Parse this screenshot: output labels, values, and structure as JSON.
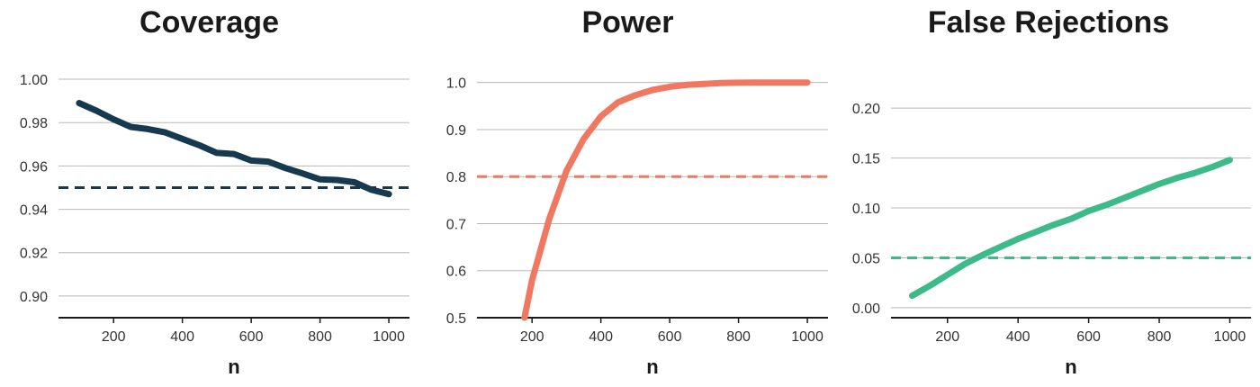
{
  "chart_data": [
    {
      "type": "line",
      "title": "Coverage",
      "xlabel": "n",
      "ylabel": "",
      "xlim": [
        40,
        1060
      ],
      "ylim": [
        0.89,
        1.005
      ],
      "xticks": [
        200,
        400,
        600,
        800,
        1000
      ],
      "xtick_labels": [
        "200",
        "400",
        "600",
        "800",
        "1000"
      ],
      "yticks": [
        0.9,
        0.92,
        0.94,
        0.96,
        0.98,
        1.0
      ],
      "ytick_labels": [
        "0.90",
        "0.92",
        "0.94",
        "0.96",
        "0.98",
        "1.00"
      ],
      "grid": "horizontal",
      "color": "#17394f",
      "reference_line": 0.95,
      "series": [
        {
          "x": [
            100,
            150,
            200,
            250,
            300,
            350,
            400,
            450,
            500,
            550,
            600,
            650,
            700,
            750,
            800,
            850,
            900,
            950,
            1000
          ],
          "y": [
            0.989,
            0.9855,
            0.9815,
            0.978,
            0.977,
            0.9755,
            0.9725,
            0.9695,
            0.966,
            0.9655,
            0.9625,
            0.962,
            0.959,
            0.9565,
            0.9538,
            0.9535,
            0.9525,
            0.949,
            0.947
          ]
        }
      ]
    },
    {
      "type": "line",
      "title": "Power",
      "xlabel": "n",
      "ylabel": "",
      "xlim": [
        40,
        1060
      ],
      "ylim": [
        0.5,
        1.03
      ],
      "xticks": [
        200,
        400,
        600,
        800,
        1000
      ],
      "xtick_labels": [
        "200",
        "400",
        "600",
        "800",
        "1000"
      ],
      "yticks": [
        0.5,
        0.6,
        0.7,
        0.8,
        0.9,
        1.0
      ],
      "ytick_labels": [
        "0.5",
        "0.6",
        "0.7",
        "0.8",
        "0.9",
        "1.0"
      ],
      "grid": "horizontal",
      "color": "#f07860",
      "reference_line": 0.8,
      "series": [
        {
          "x": [
            178,
            200,
            250,
            300,
            350,
            400,
            450,
            500,
            550,
            600,
            650,
            700,
            750,
            800,
            850,
            900,
            950,
            1000
          ],
          "y": [
            0.5,
            0.58,
            0.71,
            0.812,
            0.88,
            0.928,
            0.958,
            0.973,
            0.984,
            0.991,
            0.995,
            0.997,
            0.999,
            0.9995,
            1.0,
            1.0,
            1.0,
            1.0
          ]
        }
      ]
    },
    {
      "type": "line",
      "title": "False Rejections",
      "xlabel": "n",
      "ylabel": "",
      "xlim": [
        40,
        1060
      ],
      "ylim": [
        -0.01,
        0.22
      ],
      "xticks": [
        200,
        400,
        600,
        800,
        1000
      ],
      "xtick_labels": [
        "200",
        "400",
        "600",
        "800",
        "1000"
      ],
      "yticks": [
        0.0,
        0.05,
        0.1,
        0.15,
        0.2
      ],
      "ytick_labels": [
        "0.00",
        "0.05",
        "0.10",
        "0.15",
        "0.20"
      ],
      "grid": "horizontal",
      "color": "#3dba8a",
      "reference_line": 0.05,
      "series": [
        {
          "x": [
            100,
            150,
            200,
            250,
            300,
            350,
            400,
            450,
            500,
            550,
            600,
            650,
            700,
            750,
            800,
            850,
            900,
            950,
            1000
          ],
          "y": [
            0.012,
            0.022,
            0.033,
            0.044,
            0.053,
            0.061,
            0.069,
            0.076,
            0.083,
            0.089,
            0.097,
            0.103,
            0.11,
            0.117,
            0.124,
            0.13,
            0.135,
            0.141,
            0.148
          ]
        }
      ]
    }
  ]
}
